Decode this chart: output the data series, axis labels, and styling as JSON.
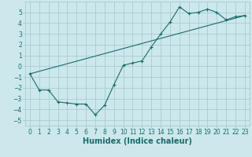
{
  "xlabel": "Humidex (Indice chaleur)",
  "bg_color": "#cce8ec",
  "grid_color": "#aaccd0",
  "line_color": "#1a6b6b",
  "xlim": [
    -0.5,
    23.5
  ],
  "ylim": [
    -5.5,
    6.0
  ],
  "yticks": [
    -5,
    -4,
    -3,
    -2,
    -1,
    0,
    1,
    2,
    3,
    4,
    5
  ],
  "xticks": [
    0,
    1,
    2,
    3,
    4,
    5,
    6,
    7,
    8,
    9,
    10,
    11,
    12,
    13,
    14,
    15,
    16,
    17,
    18,
    19,
    20,
    21,
    22,
    23
  ],
  "series1_x": [
    0,
    1,
    2,
    3,
    4,
    5,
    6,
    7,
    8,
    9,
    10,
    11,
    12,
    13,
    14,
    15,
    16,
    17,
    18,
    19,
    20,
    21,
    22,
    23
  ],
  "series1_y": [
    -0.7,
    -2.2,
    -2.2,
    -3.3,
    -3.4,
    -3.5,
    -3.5,
    -4.5,
    -3.6,
    -1.7,
    0.1,
    0.3,
    0.5,
    1.8,
    3.0,
    4.1,
    5.5,
    4.9,
    5.0,
    5.3,
    5.0,
    4.3,
    4.6,
    4.7
  ],
  "series2_x": [
    0,
    23
  ],
  "series2_y": [
    -0.7,
    4.7
  ],
  "tick_fontsize": 5.5,
  "xlabel_fontsize": 7
}
